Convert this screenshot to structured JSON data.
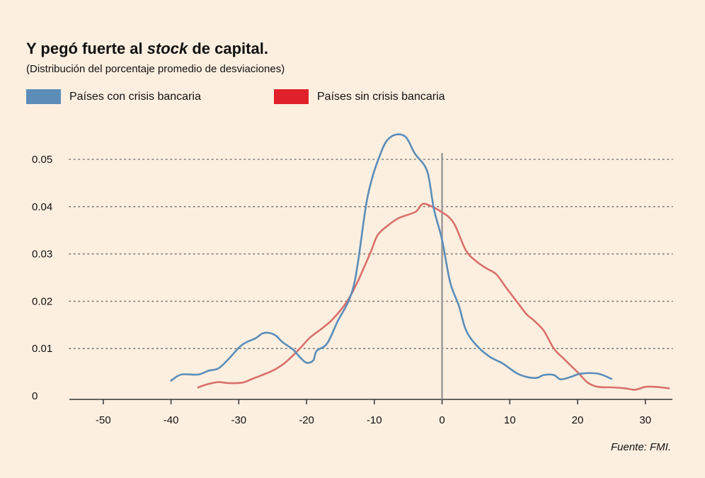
{
  "header": {
    "title_prefix": "Y pegó fuerte al ",
    "title_emphasis": "stock",
    "title_suffix": " de capital.",
    "subtitle": "(Distribución del porcentaje promedio de desviaciones)"
  },
  "footer": {
    "source": "Fuente: FMI."
  },
  "colors": {
    "background": "#fcefe0",
    "series_con": "#5b8db8",
    "series_sin": "#d9706a",
    "legend_sin_swatch": "#e0202a",
    "grid": "#777777",
    "axis": "#333333",
    "zero_line": "#9a9a9a"
  },
  "chart_data": {
    "type": "line",
    "title": "Y pegó fuerte al stock de capital.",
    "subtitle": "(Distribución del porcentaje promedio de desviaciones)",
    "xlabel": "",
    "ylabel": "",
    "xlim": [
      -55,
      34
    ],
    "ylim": [
      0,
      0.055
    ],
    "x_ticks": [
      -50,
      -40,
      -30,
      -20,
      -10,
      0,
      10,
      20,
      30
    ],
    "x_tick_labels": [
      "-50",
      "-40",
      "-30",
      "-20",
      "-10",
      "0",
      "10",
      "20",
      "30"
    ],
    "y_ticks": [
      0,
      0.01,
      0.02,
      0.03,
      0.04,
      0.05
    ],
    "y_tick_labels": [
      "0",
      "0.01",
      "0.02",
      "0.03",
      "0.04",
      "0.05"
    ],
    "grid": "horizontal-dotted",
    "legend_position": "top-left",
    "vertical_reference_line_x": 0,
    "series": [
      {
        "name": "Países con crisis bancaria",
        "color": "#5b8db8",
        "points": [
          [
            -40,
            0.0032
          ],
          [
            -38.5,
            0.0045
          ],
          [
            -36,
            0.0045
          ],
          [
            -34.5,
            0.0053
          ],
          [
            -33,
            0.0058
          ],
          [
            -31.5,
            0.0078
          ],
          [
            -29.5,
            0.0108
          ],
          [
            -27.5,
            0.0122
          ],
          [
            -26.5,
            0.0132
          ],
          [
            -25.5,
            0.0133
          ],
          [
            -24.5,
            0.0127
          ],
          [
            -23.5,
            0.0113
          ],
          [
            -22,
            0.0098
          ],
          [
            -21,
            0.0082
          ],
          [
            -20,
            0.007
          ],
          [
            -19,
            0.0075
          ],
          [
            -18.5,
            0.0095
          ],
          [
            -17,
            0.011
          ],
          [
            -15.5,
            0.0155
          ],
          [
            -13,
            0.0235
          ],
          [
            -11,
            0.042
          ],
          [
            -9,
            0.0515
          ],
          [
            -7.5,
            0.0548
          ],
          [
            -5.5,
            0.0549
          ],
          [
            -4,
            0.0512
          ],
          [
            -2.2,
            0.0475
          ],
          [
            -1.2,
            0.0395
          ],
          [
            0,
            0.033
          ],
          [
            1.2,
            0.024
          ],
          [
            2.5,
            0.019
          ],
          [
            3.5,
            0.014
          ],
          [
            5,
            0.0108
          ],
          [
            7,
            0.0083
          ],
          [
            9,
            0.0068
          ],
          [
            11,
            0.0048
          ],
          [
            12.5,
            0.004
          ],
          [
            14,
            0.0038
          ],
          [
            15,
            0.0044
          ],
          [
            16.5,
            0.0044
          ],
          [
            17.5,
            0.0035
          ],
          [
            19,
            0.004
          ],
          [
            20.5,
            0.0047
          ],
          [
            23,
            0.0047
          ],
          [
            25,
            0.0036
          ]
        ]
      },
      {
        "name": "Países sin crisis bancaria",
        "color": "#d9706a",
        "points": [
          [
            -36,
            0.0018
          ],
          [
            -34.5,
            0.0025
          ],
          [
            -33,
            0.0029
          ],
          [
            -31.5,
            0.0027
          ],
          [
            -29.5,
            0.0028
          ],
          [
            -28,
            0.0036
          ],
          [
            -26,
            0.0047
          ],
          [
            -24.5,
            0.0057
          ],
          [
            -23,
            0.0072
          ],
          [
            -21,
            0.01
          ],
          [
            -19.5,
            0.0123
          ],
          [
            -17.5,
            0.0145
          ],
          [
            -16,
            0.0164
          ],
          [
            -14,
            0.02
          ],
          [
            -12.5,
            0.024
          ],
          [
            -11.5,
            0.0272
          ],
          [
            -10.5,
            0.0305
          ],
          [
            -9.5,
            0.034
          ],
          [
            -8,
            0.036
          ],
          [
            -6.5,
            0.0375
          ],
          [
            -5,
            0.0383
          ],
          [
            -3.8,
            0.039
          ],
          [
            -2.8,
            0.0406
          ],
          [
            -1.2,
            0.0398
          ],
          [
            0,
            0.0388
          ],
          [
            1,
            0.0378
          ],
          [
            2,
            0.0358
          ],
          [
            3.5,
            0.0308
          ],
          [
            5,
            0.0285
          ],
          [
            6.5,
            0.027
          ],
          [
            8,
            0.0257
          ],
          [
            9.5,
            0.0228
          ],
          [
            11,
            0.02
          ],
          [
            12.5,
            0.0172
          ],
          [
            13.5,
            0.016
          ],
          [
            15,
            0.0138
          ],
          [
            16.5,
            0.01
          ],
          [
            18,
            0.0078
          ],
          [
            20,
            0.005
          ],
          [
            21.5,
            0.0028
          ],
          [
            23,
            0.0019
          ],
          [
            25,
            0.0018
          ],
          [
            27,
            0.0016
          ],
          [
            28.5,
            0.0013
          ],
          [
            30,
            0.0019
          ],
          [
            31.5,
            0.0019
          ],
          [
            33.5,
            0.0016
          ]
        ]
      }
    ]
  }
}
